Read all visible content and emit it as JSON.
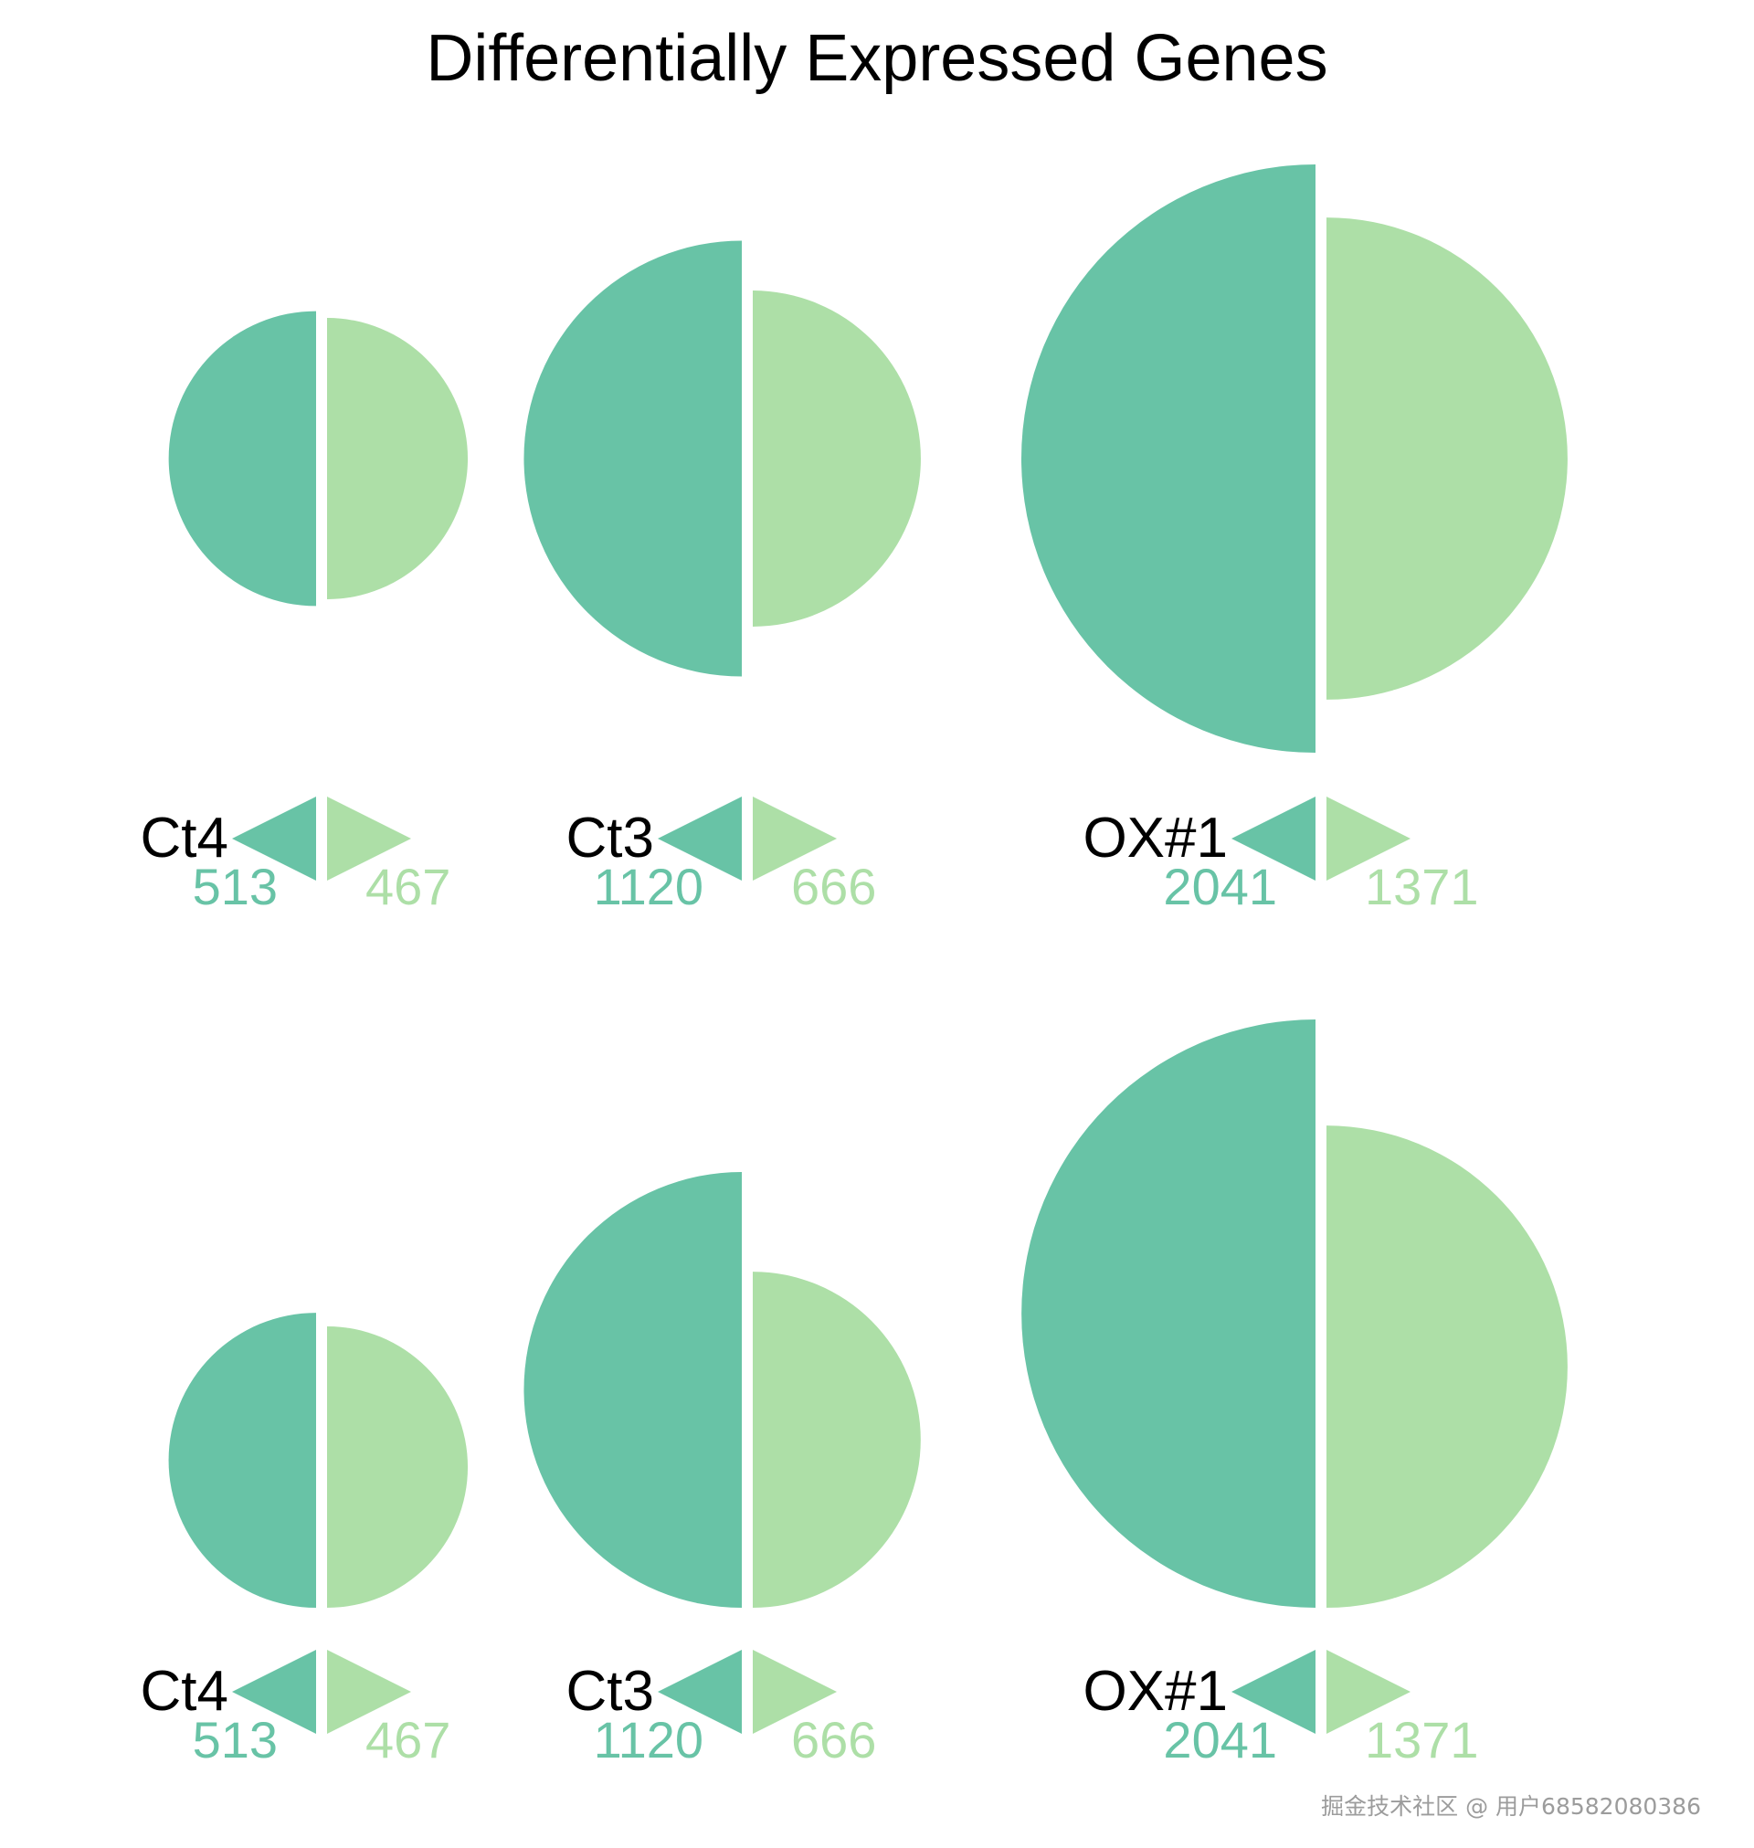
{
  "colors": {
    "up": "#68c3a6",
    "down": "#addfa7",
    "text": "#000000",
    "background": "#ffffff"
  },
  "chart_data": {
    "type": "half-circle",
    "title": "Differentially Expressed Genes",
    "panels": [
      {
        "groups": [
          {
            "name": "Ct4",
            "up": 513,
            "down": 467
          },
          {
            "name": "Ct3",
            "up": 1120,
            "down": 666
          },
          {
            "name": "OX#1",
            "up": 2041,
            "down": 1371
          }
        ]
      },
      {
        "groups": [
          {
            "name": "Ct4",
            "up": 513,
            "down": 467
          },
          {
            "name": "Ct3",
            "up": 1120,
            "down": 666
          },
          {
            "name": "OX#1",
            "up": 2041,
            "down": 1371
          }
        ]
      }
    ]
  },
  "watermark": "掘金技术社区 @ 用户68582080386"
}
